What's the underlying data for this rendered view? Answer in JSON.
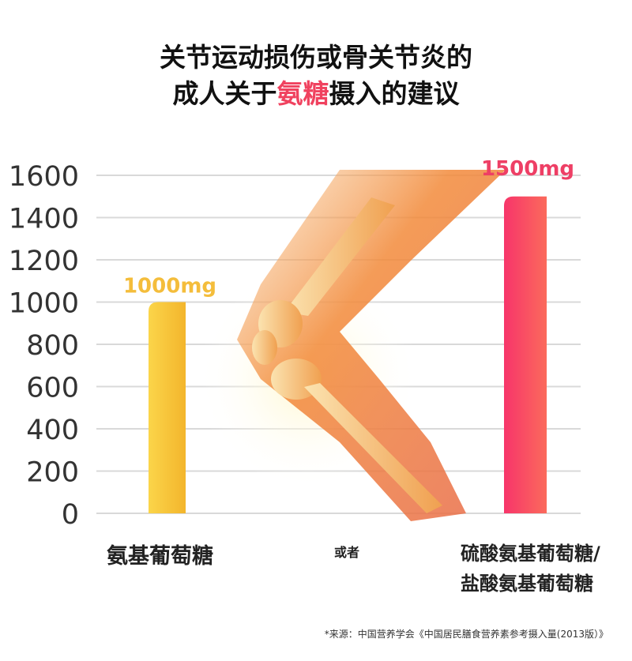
{
  "title": {
    "line1": "关节运动损伤或骨关节炎的",
    "line2_pre": "成人关于",
    "line2_highlight": "氨糖",
    "line2_post": "摄入的建议"
  },
  "colors": {
    "highlight": "#f0425f",
    "bar1": "#f7c53a",
    "bar2": "#f53f63",
    "label1": "#f4bd3b",
    "label2": "#ee3f65",
    "grid": "#d9d9d9"
  },
  "chart_data": {
    "type": "bar",
    "categories": [
      "氨基葡萄糖",
      "硫酸氨基葡萄糖/盐酸氨基葡萄糖"
    ],
    "values": [
      1000,
      1500
    ],
    "data_labels": [
      "1000mg",
      "1500mg"
    ],
    "yticks": [
      "0",
      "200",
      "400",
      "600",
      "800",
      "1000",
      "1200",
      "1400",
      "1600"
    ],
    "ylim": [
      0,
      1600
    ],
    "grid": true,
    "separator_label": "或者"
  },
  "categories_text": {
    "cat1": "氨基葡萄糖",
    "cat2_line1": "硫酸氨基葡萄糖/",
    "cat2_line2": "盐酸氨基葡萄糖",
    "middle": "或者"
  },
  "footnote": "*来源：中国营养学会《中国居民膳食营养素参考摄入量(2013版）》"
}
